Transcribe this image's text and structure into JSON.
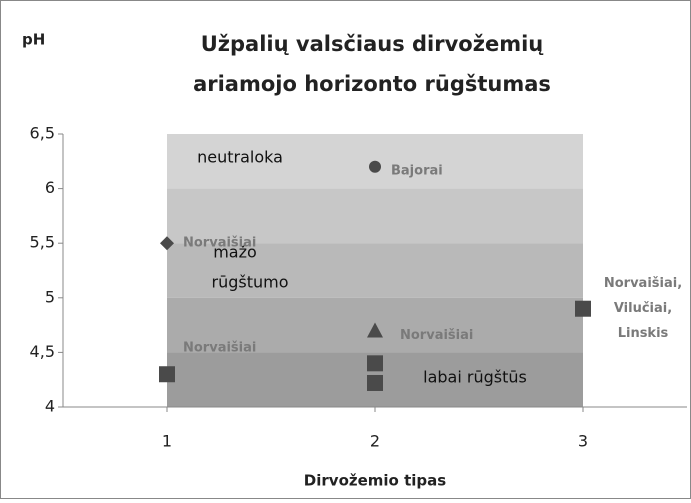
{
  "chart_data": {
    "type": "scatter",
    "title": [
      "Užpalių valsčiaus dirvožemių",
      "ariamojo horizonto rūgštumas"
    ],
    "ylabel": "pH",
    "xlabel": "Dirvožemio tipas",
    "xlim": [
      0.5,
      3.5
    ],
    "xticks": [
      1,
      2,
      3
    ],
    "ylim": [
      4,
      6.5
    ],
    "yticks": [
      4,
      {
        "value": 4.5,
        "label": "4,5"
      },
      5,
      {
        "value": 5.5,
        "label": "5,5"
      },
      6,
      {
        "value": 6.5,
        "label": "6,5"
      }
    ],
    "bands": {
      "x": [
        1,
        3
      ],
      "ranges": [
        {
          "ymin": 6,
          "ymax": 6.5,
          "color": "#d4d4d4"
        },
        {
          "ymin": 5.5,
          "ymax": 6,
          "color": "#c7c7c7"
        },
        {
          "ymin": 5,
          "ymax": 5.5,
          "color": "#b9b9b9"
        },
        {
          "ymin": 4.5,
          "ymax": 5,
          "color": "#ababab"
        },
        {
          "ymin": 4,
          "ymax": 4.5,
          "color": "#9c9c9c"
        }
      ]
    },
    "annotations": [
      [
        "neutraloka"
      ],
      [
        "mažo",
        "rūgštumo"
      ],
      [
        "labai rūgštūs"
      ]
    ],
    "marker_color": "#4a4a4a",
    "label_color": "#7a7a7a",
    "points": [
      {
        "x": 1,
        "y": 5.5,
        "marker": "diamond",
        "label": [
          "Norvaišiai"
        ]
      },
      {
        "x": 1,
        "y": 4.3,
        "marker": "square",
        "label": [
          "Norvaišiai"
        ]
      },
      {
        "x": 2,
        "y": 6.2,
        "marker": "circle",
        "label": [
          "Bajorai"
        ]
      },
      {
        "x": 2,
        "y": 4.7,
        "marker": "triangle",
        "label": [
          "Norvaišiai"
        ]
      },
      {
        "x": 2,
        "y": 4.4,
        "marker": "square"
      },
      {
        "x": 2,
        "y": 4.22,
        "marker": "square"
      },
      {
        "x": 3,
        "y": 4.9,
        "marker": "square",
        "label": [
          "Norvaišiai,",
          "Vilučiai,",
          "Linskis"
        ]
      }
    ]
  }
}
